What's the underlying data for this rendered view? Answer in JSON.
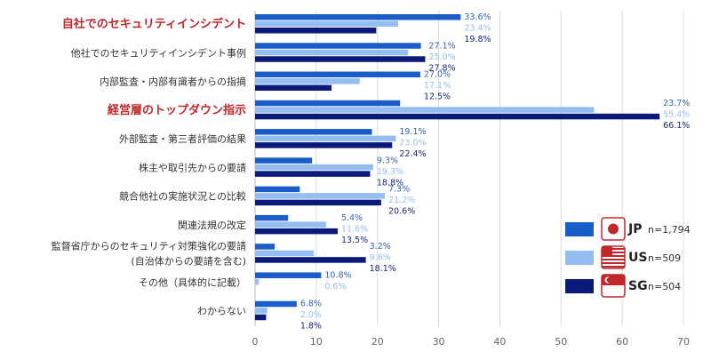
{
  "chart_data": {
    "type": "bar",
    "orientation": "horizontal",
    "categories": [
      "自社でのセキュリティインシデント",
      "他社でのセキュリティインシデント事例",
      "内部監査・内部有識者からの指摘",
      "経営層のトップダウン指示",
      "外部監査・第三者評価の結果",
      "株主や取引先からの要請",
      "競合他社の実施状況との比較",
      "関連法規の改定",
      "監督省庁からのセキュリティ対策強化の要請\n(自治体からの要請を含む)",
      "その他（具体的に記載）",
      "わからない"
    ],
    "highlighted_categories": [
      0,
      3
    ],
    "series": [
      {
        "name": "JP",
        "n": "n=1,794",
        "color": "#1a5cc8",
        "values": [
          33.6,
          27.1,
          27.0,
          23.7,
          19.1,
          9.3,
          7.3,
          5.4,
          3.2,
          10.8,
          6.8
        ]
      },
      {
        "name": "US",
        "n": "n=509",
        "color": "#94bdf2",
        "values": [
          23.4,
          25.0,
          17.1,
          55.4,
          23.0,
          19.3,
          21.2,
          11.6,
          9.6,
          0.6,
          2.0
        ]
      },
      {
        "name": "SG",
        "n": "n=504",
        "color": "#0a1a7a",
        "values": [
          19.8,
          27.8,
          12.5,
          66.1,
          22.4,
          18.8,
          20.6,
          13.5,
          18.1,
          null,
          1.8
        ]
      }
    ],
    "xlim": [
      0,
      70
    ],
    "xticks": [
      "0",
      "10",
      "20",
      "30",
      "40",
      "50",
      "60",
      "70"
    ],
    "grid": true,
    "legend": "bottom-right",
    "highlight_color": "#c0282a"
  }
}
